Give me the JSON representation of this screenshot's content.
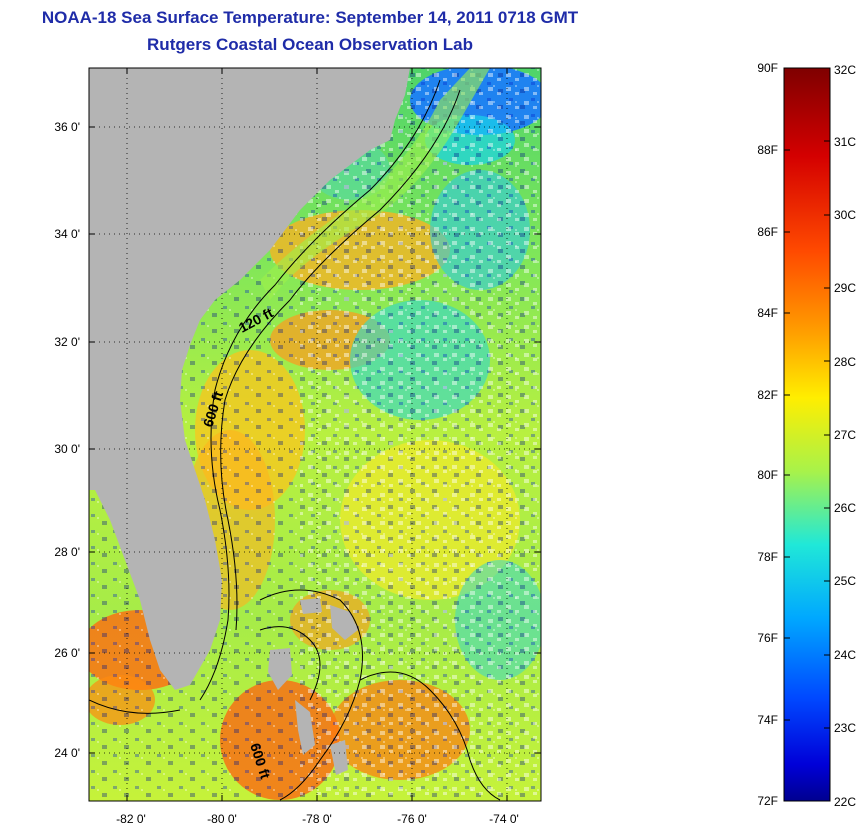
{
  "title": {
    "line1": "NOAA-18 Sea Surface Temperature:  September 14, 2011 0718 GMT",
    "line2": "Rutgers Coastal Ocean Observation Lab"
  },
  "map": {
    "lon_labels": [
      "-82 0'",
      "-80 0'",
      "-78 0'",
      "-76 0'",
      "-74 0'"
    ],
    "lat_labels": [
      "36 0'",
      "34 0'",
      "32 0'",
      "30 0'",
      "28 0'",
      "26 0'",
      "24 0'"
    ],
    "contour_labels": [
      "120 ft",
      "600 ft",
      "600 ft"
    ],
    "land_color": "#b4b4b4",
    "cloud_color": "#ffffff"
  },
  "colorbar": {
    "fahrenheit_labels": [
      "90F",
      "88F",
      "86F",
      "84F",
      "82F",
      "80F",
      "78F",
      "76F",
      "74F",
      "72F"
    ],
    "celsius_labels": [
      "32C",
      "31C",
      "30C",
      "29C",
      "28C",
      "27C",
      "26C",
      "25C",
      "24C",
      "23C",
      "22C"
    ],
    "colormap": [
      "#7f0000",
      "#ff0000",
      "#ff8000",
      "#ffff00",
      "#80ff80",
      "#00ffff",
      "#0080ff",
      "#0000ff",
      "#00008f"
    ]
  }
}
